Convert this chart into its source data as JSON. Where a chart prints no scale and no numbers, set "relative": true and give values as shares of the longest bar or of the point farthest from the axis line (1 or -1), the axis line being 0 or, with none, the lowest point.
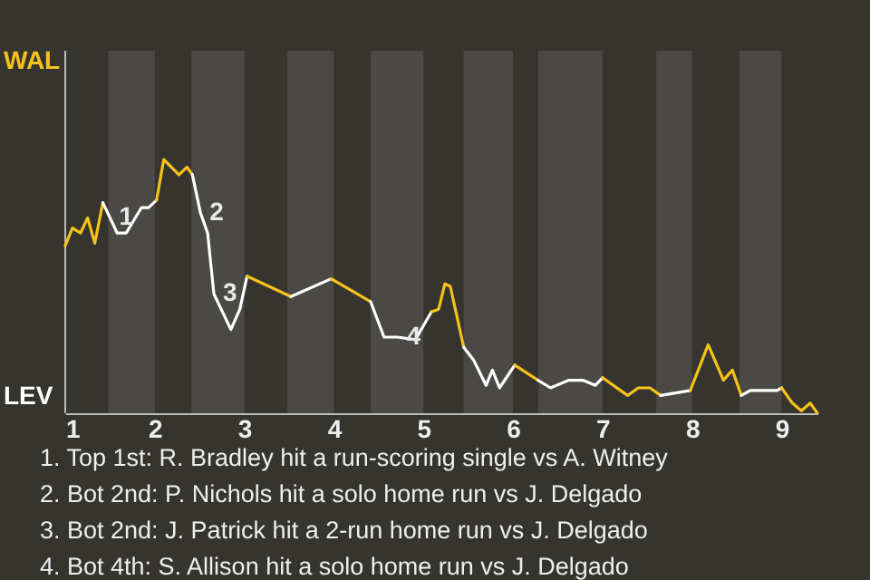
{
  "chart_data": {
    "type": "line",
    "relative": true,
    "xlim": [
      1,
      9.4
    ],
    "xticks": [
      1,
      2,
      3,
      4,
      5,
      6,
      7,
      8,
      9
    ],
    "series": [
      {
        "color": "#f5c21b",
        "x": [
          1,
          1.08,
          1.17,
          1.25,
          1.33,
          1.42
        ],
        "values": [
          0.66,
          0.73,
          0.71,
          0.77,
          0.67,
          0.83
        ]
      },
      {
        "color": "#ffffff",
        "x": [
          1.42,
          1.5,
          1.58,
          1.68,
          1.85,
          1.93,
          2.02
        ],
        "values": [
          0.83,
          0.77,
          0.71,
          0.71,
          0.81,
          0.81,
          0.84
        ]
      },
      {
        "color": "#f5c21b",
        "x": [
          2.02,
          2.1,
          2.27,
          2.36,
          2.42
        ],
        "values": [
          0.84,
          1,
          0.94,
          0.97,
          0.94
        ]
      },
      {
        "color": "#ffffff",
        "x": [
          2.42,
          2.51,
          2.59,
          2.66,
          2.85,
          2.95,
          3.03
        ],
        "values": [
          0.94,
          0.79,
          0.71,
          0.47,
          0.33,
          0.41,
          0.54
        ]
      },
      {
        "color": "#f5c21b",
        "x": [
          3.03,
          3.52
        ],
        "values": [
          0.54,
          0.46
        ]
      },
      {
        "color": "#ffffff",
        "x": [
          3.52,
          3.97
        ],
        "values": [
          0.46,
          0.53
        ]
      },
      {
        "color": "#f5c21b",
        "x": [
          3.97,
          4.41
        ],
        "values": [
          0.53,
          0.44
        ]
      },
      {
        "color": "#ffffff",
        "x": [
          4.41,
          4.56,
          4.71,
          4.91,
          5.09
        ],
        "values": [
          0.44,
          0.3,
          0.3,
          0.29,
          0.4
        ]
      },
      {
        "color": "#f5c21b",
        "x": [
          5.09,
          5.17,
          5.24,
          5.3,
          5.45
        ],
        "values": [
          0.4,
          0.41,
          0.51,
          0.5,
          0.26
        ]
      },
      {
        "color": "#ffffff",
        "x": [
          5.45,
          5.56,
          5.7,
          5.77,
          5.85,
          6.02
        ],
        "values": [
          0.26,
          0.21,
          0.11,
          0.17,
          0.1,
          0.19
        ]
      },
      {
        "color": "#f5c21b",
        "x": [
          6.02,
          6.28
        ],
        "values": [
          0.19,
          0.13
        ]
      },
      {
        "color": "#ffffff",
        "x": [
          6.28,
          6.42,
          6.62,
          6.78,
          6.92,
          7
        ],
        "values": [
          0.13,
          0.1,
          0.13,
          0.13,
          0.11,
          0.14
        ]
      },
      {
        "color": "#f5c21b",
        "x": [
          7,
          7.28,
          7.4,
          7.53,
          7.65
        ],
        "values": [
          0.14,
          0.07,
          0.1,
          0.1,
          0.07
        ]
      },
      {
        "color": "#ffffff",
        "x": [
          7.65,
          7.98
        ],
        "values": [
          0.07,
          0.09
        ]
      },
      {
        "color": "#f5c21b",
        "x": [
          7.98,
          8.18,
          8.35,
          8.45,
          8.55
        ],
        "values": [
          0.09,
          0.27,
          0.13,
          0.17,
          0.07
        ]
      },
      {
        "color": "#ffffff",
        "x": [
          8.55,
          8.65,
          8.95,
          9
        ],
        "values": [
          0.07,
          0.09,
          0.09,
          0.1
        ]
      },
      {
        "color": "#f5c21b",
        "x": [
          9,
          9.12,
          9.22,
          9.32,
          9.4
        ],
        "values": [
          0.1,
          0.04,
          0.01,
          0.04,
          0
        ]
      }
    ],
    "bands": [
      {
        "axis": "x",
        "from": 1.48,
        "to": 2,
        "color": "#4b4946"
      },
      {
        "axis": "x",
        "from": 2.41,
        "to": 3,
        "color": "#4b4946"
      },
      {
        "axis": "x",
        "from": 3.48,
        "to": 4,
        "color": "#4b4946"
      },
      {
        "axis": "x",
        "from": 4.41,
        "to": 5,
        "color": "#4b4946"
      },
      {
        "axis": "x",
        "from": 5.45,
        "to": 6,
        "color": "#4b4946"
      },
      {
        "axis": "x",
        "from": 6.28,
        "to": 7,
        "color": "#4b4946"
      },
      {
        "axis": "x",
        "from": 7.6,
        "to": 8,
        "color": "#4b4946"
      },
      {
        "axis": "x",
        "from": 8.53,
        "to": 9,
        "color": "#4b4946"
      }
    ],
    "annotations": [
      "WAL",
      "LEV",
      {
        "text": "1",
        "x": 1.5,
        "y": 0.77
      },
      {
        "text": "2",
        "x": 2.51,
        "y": 0.79
      },
      {
        "text": "3",
        "x": 2.66,
        "y": 0.47
      },
      {
        "text": "4",
        "x": 4.71,
        "y": 0.3
      },
      "1. Top 1st: R. Bradley hit a run-scoring single vs A. Witney",
      "2. Bot 2nd: P. Nichols hit a solo home run vs J. Delgado",
      "3. Bot 2nd: J. Patrick hit a 2-run home run vs J. Delgado",
      "4. Bot 4th: S. Allison hit a solo home run vs J. Delgado"
    ]
  }
}
